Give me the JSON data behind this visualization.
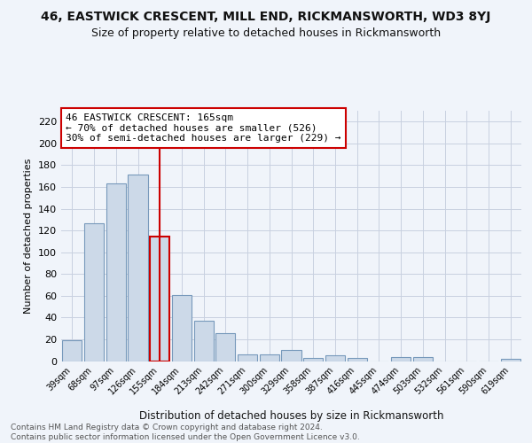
{
  "title": "46, EASTWICK CRESCENT, MILL END, RICKMANSWORTH, WD3 8YJ",
  "subtitle": "Size of property relative to detached houses in Rickmansworth",
  "xlabel": "Distribution of detached houses by size in Rickmansworth",
  "ylabel": "Number of detached properties",
  "categories": [
    "39sqm",
    "68sqm",
    "97sqm",
    "126sqm",
    "155sqm",
    "184sqm",
    "213sqm",
    "242sqm",
    "271sqm",
    "300sqm",
    "329sqm",
    "358sqm",
    "387sqm",
    "416sqm",
    "445sqm",
    "474sqm",
    "503sqm",
    "532sqm",
    "561sqm",
    "590sqm",
    "619sqm"
  ],
  "values": [
    19,
    127,
    163,
    171,
    114,
    61,
    37,
    26,
    6,
    6,
    10,
    3,
    5,
    3,
    0,
    4,
    4,
    0,
    0,
    0,
    2
  ],
  "bar_color": "#ccd9e8",
  "bar_edge_color": "#7799bb",
  "highlight_index": 4,
  "highlight_edge_color": "#cc0000",
  "vline_x": 4,
  "vline_color": "#cc0000",
  "annotation_text": "46 EASTWICK CRESCENT: 165sqm\n← 70% of detached houses are smaller (526)\n30% of semi-detached houses are larger (229) →",
  "annotation_box_color": "#ffffff",
  "annotation_box_edge_color": "#cc0000",
  "footer_text": "Contains HM Land Registry data © Crown copyright and database right 2024.\nContains public sector information licensed under the Open Government Licence v3.0.",
  "ylim": [
    0,
    230
  ],
  "yticks": [
    0,
    20,
    40,
    60,
    80,
    100,
    120,
    140,
    160,
    180,
    200,
    220
  ],
  "bg_color": "#f0f4fa",
  "grid_color": "#c8d0e0",
  "title_fontsize": 10,
  "subtitle_fontsize": 9
}
